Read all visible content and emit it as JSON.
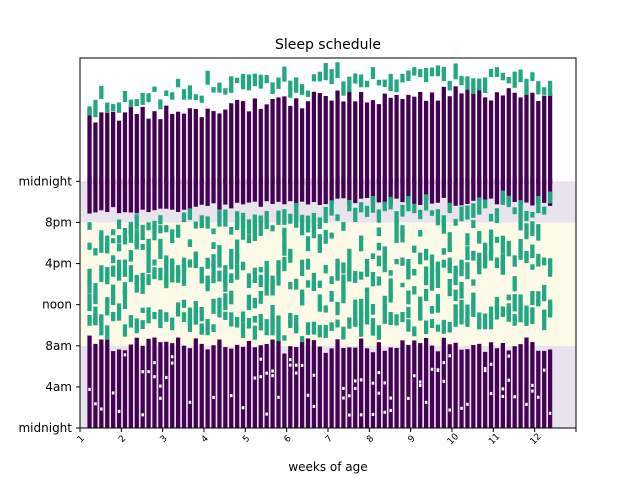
{
  "chart_data": {
    "type": "heatmap",
    "title": "Sleep schedule",
    "xlabel": "weeks of age",
    "ylabel": "",
    "x_ticks": [
      "1",
      "2",
      "3",
      "4",
      "5",
      "6",
      "7",
      "8",
      "9",
      "10",
      "11",
      "12"
    ],
    "y_ticks": [
      "midnight",
      "4am",
      "8am",
      "noon",
      "4pm",
      "8pm",
      "midnight"
    ],
    "x_range_days": [
      0,
      84
    ],
    "y_range_hours": [
      0,
      36
    ],
    "y_ticks_hours": [
      0,
      4,
      8,
      12,
      16,
      20,
      24
    ],
    "grid": false,
    "bands": [
      {
        "name": "night",
        "from_hour": 0,
        "to_hour": 8,
        "color": "#e8e3ec"
      },
      {
        "name": "day",
        "from_hour": 8,
        "to_hour": 20,
        "color": "#fdfbe8"
      },
      {
        "name": "evening",
        "from_hour": 20,
        "to_hour": 24,
        "color": "#e8e3ec"
      }
    ],
    "states": [
      {
        "name": "asleep",
        "color": "#440154"
      },
      {
        "name": "awake-fed",
        "color": "#21a883"
      },
      {
        "name": "awake",
        "color": "#fdfbe8"
      }
    ],
    "days_recorded": 79,
    "day_spans": [
      {
        "day": 1,
        "asleep_hours": [
          [
            0,
            8.2
          ],
          [
            21.0,
            30.5
          ]
        ],
        "awake_fed_hours": [
          [
            9.5,
            10.5
          ],
          [
            13.5,
            14.5
          ],
          [
            17.5,
            18.3
          ],
          [
            31.0,
            32.0
          ]
        ]
      },
      {
        "day": 20,
        "asleep_hours": [
          [
            0,
            8.0
          ],
          [
            21.5,
            31.0
          ]
        ],
        "awake_fed_hours": [
          [
            10.0,
            11.0
          ],
          [
            15.0,
            16.0
          ],
          [
            19.5,
            20.5
          ],
          [
            32.5,
            33.5
          ]
        ]
      },
      {
        "day": 40,
        "asleep_hours": [
          [
            0,
            8.0
          ],
          [
            22.0,
            32.0
          ]
        ],
        "awake_fed_hours": [
          [
            9.0,
            10.0
          ],
          [
            14.0,
            15.0
          ],
          [
            20.0,
            21.0
          ],
          [
            33.0,
            34.0
          ]
        ]
      },
      {
        "day": 60,
        "asleep_hours": [
          [
            0,
            8.1
          ],
          [
            22.0,
            32.5
          ]
        ],
        "awake_fed_hours": [
          [
            10.0,
            11.0
          ],
          [
            15.5,
            16.5
          ],
          [
            20.5,
            21.5
          ],
          [
            33.5,
            34.5
          ]
        ]
      },
      {
        "day": 79,
        "asleep_hours": [
          [
            0,
            8.0
          ],
          [
            22.0,
            32.5
          ]
        ],
        "awake_fed_hours": [
          [
            11.0,
            12.0
          ],
          [
            16.0,
            17.0
          ],
          [
            21.0,
            22.0
          ],
          [
            33.0,
            34.0
          ]
        ]
      }
    ]
  }
}
